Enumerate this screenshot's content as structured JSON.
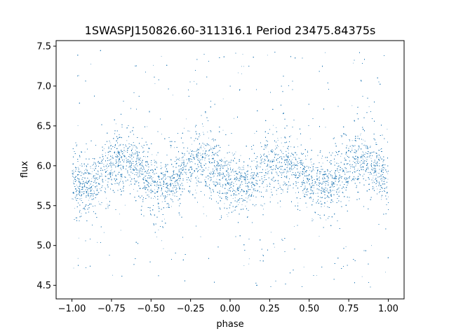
{
  "chart_data": {
    "type": "scatter",
    "title": "1SWASPJ150826.60-311316.1 Period 23475.84375s",
    "xlabel": "phase",
    "ylabel": "flux",
    "xlim": [
      -1.1,
      1.1
    ],
    "ylim": [
      4.33,
      7.57
    ],
    "xticks": [
      -1.0,
      -0.75,
      -0.5,
      -0.25,
      0.0,
      0.25,
      0.5,
      0.75,
      1.0
    ],
    "xtick_labels": [
      "−1.00",
      "−0.75",
      "−0.50",
      "−0.25",
      "0.00",
      "0.25",
      "0.50",
      "0.75",
      "1.00"
    ],
    "yticks": [
      4.5,
      5.0,
      5.5,
      6.0,
      6.5,
      7.0,
      7.5
    ],
    "ytick_labels": [
      "4.5",
      "5.0",
      "5.5",
      "6.0",
      "6.5",
      "7.0",
      "7.5"
    ],
    "grid": false,
    "legend": "none",
    "marker_color": "#1f77b4",
    "series": [
      {
        "x_range": [
          -1.0,
          1.0
        ],
        "y_range": [
          4.47,
          7.45
        ],
        "mean_flux": 5.92,
        "flux_amplitude": 0.18,
        "minima_phase": [
          -0.93,
          -0.43,
          0.07,
          0.57
        ],
        "maxima_phase": [
          -0.68,
          -0.18,
          0.32,
          0.82
        ],
        "min_flux": 5.75,
        "max_flux": 6.07
      }
    ]
  }
}
